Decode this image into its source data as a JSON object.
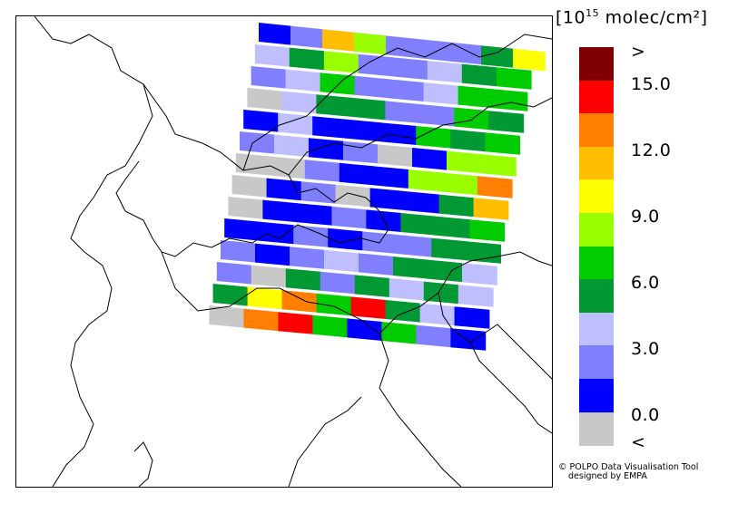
{
  "legend": {
    "unit_prefix": "[10",
    "unit_exp": "15",
    "unit_suffix": " molec/cm²]",
    "ticks": [
      ">",
      "15.0",
      "12.0",
      "9.0",
      "6.0",
      "3.0",
      "0.0",
      "<"
    ],
    "classes": [
      {
        "label": "above-max",
        "color": "#7f0000"
      },
      {
        "label": "13.5-15",
        "color": "#ff0000"
      },
      {
        "label": "12-13.5",
        "color": "#ff7f00"
      },
      {
        "label": "10.5-12",
        "color": "#ffbf00"
      },
      {
        "label": "9-10.5",
        "color": "#ffff00"
      },
      {
        "label": "7.5-9",
        "color": "#99ff00"
      },
      {
        "label": "6-7.5",
        "color": "#00cc00"
      },
      {
        "label": "4.5-6",
        "color": "#009933"
      },
      {
        "label": "3-4.5",
        "color": "#bfbfff"
      },
      {
        "label": "1.5-3",
        "color": "#8080ff"
      },
      {
        "label": "0-1.5",
        "color": "#0000ff"
      },
      {
        "label": "below-min",
        "color": "#c8c8c8"
      }
    ]
  },
  "credit": {
    "line1": "© POLPO Data Visualisation Tool",
    "line2": "designed by EMPA"
  },
  "swath_colors": {
    "gray": "#c8c8c8",
    "blue": "#0000ff",
    "lblue": "#8080ff",
    "pale": "#bfbfff",
    "dgreen": "#009933",
    "green": "#00cc00",
    "lime": "#99ff00",
    "yellow": "#ffff00",
    "amber": "#ffbf00",
    "orange": "#ff7f00",
    "red": "#ff0000"
  },
  "swath_rows": [
    [
      "blue",
      "lblue",
      "amber",
      "lime",
      "lblue",
      "lblue",
      "lblue",
      "dgreen",
      "yellow"
    ],
    [
      "pale",
      "dgreen",
      "lime",
      "lblue",
      "lblue",
      "pale",
      "dgreen",
      "green"
    ],
    [
      "lblue",
      "pale",
      "green",
      "lblue",
      "lblue",
      "pale",
      "green",
      "green"
    ],
    [
      "gray",
      "pale",
      "dgreen",
      "dgreen",
      "lblue",
      "lblue",
      "green",
      "dgreen"
    ],
    [
      "blue",
      "pale",
      "blue",
      "blue",
      "blue",
      "green",
      "dgreen",
      "green"
    ],
    [
      "lblue",
      "pale",
      "blue",
      "lblue",
      "gray",
      "blue",
      "lime",
      "lime"
    ],
    [
      "gray",
      "gray",
      "lblue",
      "blue",
      "blue",
      "lime",
      "lime",
      "orange"
    ],
    [
      "gray",
      "blue",
      "lblue",
      "gray",
      "blue",
      "blue",
      "dgreen",
      "amber"
    ],
    [
      "gray",
      "blue",
      "blue",
      "lblue",
      "blue",
      "dgreen",
      "dgreen",
      "green"
    ],
    [
      "blue",
      "blue",
      "lblue",
      "blue",
      "lblue",
      "lblue",
      "dgreen",
      "dgreen"
    ],
    [
      "lblue",
      "blue",
      "lblue",
      "pale",
      "lblue",
      "dgreen",
      "dgreen",
      "pale"
    ],
    [
      "lblue",
      "gray",
      "dgreen",
      "lblue",
      "dgreen",
      "pale",
      "dgreen",
      "pale"
    ],
    [
      "dgreen",
      "yellow",
      "orange",
      "green",
      "red",
      "dgreen",
      "pale",
      "blue"
    ],
    [
      "gray",
      "orange",
      "red",
      "green",
      "blue",
      "green",
      "lblue",
      "blue"
    ]
  ]
}
